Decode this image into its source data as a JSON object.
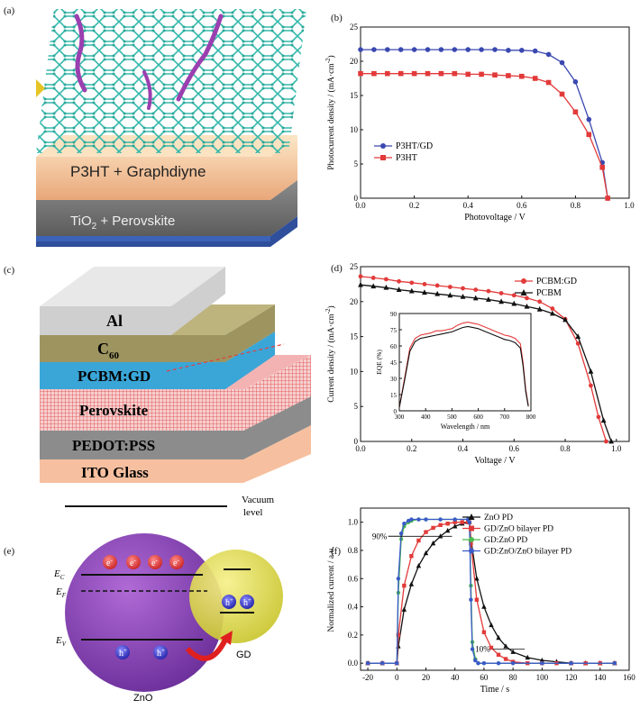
{
  "panels": {
    "a": {
      "label": "(a)",
      "layer_top": "P3HT + Graphdiyne",
      "layer_bottom_main": "TiO",
      "layer_bottom_sub": "2",
      "layer_bottom_rest": " + Perovskite"
    },
    "c": {
      "label": "(c)",
      "layers": [
        "Al",
        "C",
        "PCBM:GD",
        "Perovskite",
        "PEDOT:PSS",
        "ITO Glass"
      ],
      "c60_sub": "60"
    },
    "e": {
      "label": "(e)",
      "vacuum": "Vacuum",
      "level": "level",
      "ec": "E",
      "ec_sub": "C",
      "ef": "E",
      "ef_sub": "F",
      "ev": "E",
      "ev_sub": "V",
      "left_sphere": "ZnO",
      "right_sphere": "GD",
      "electron": "e",
      "hole": "h",
      "charge_neg": "-",
      "charge_pos": "+"
    }
  },
  "chart_data": [
    {
      "id": "b",
      "label": "(b)",
      "type": "line",
      "xlabel": "Photovoltage / V",
      "ylabel": "Photocurrent density / (mA·cm",
      "ylabel_sup": "-2",
      "ylabel_end": ")",
      "xlim": [
        0.0,
        1.0
      ],
      "ylim": [
        0,
        25
      ],
      "xticks": [
        "0.0",
        "0.2",
        "0.4",
        "0.6",
        "0.8",
        "1.0"
      ],
      "yticks": [
        "0",
        "5",
        "10",
        "15",
        "20",
        "25"
      ],
      "legend_position": "bottom-left",
      "series": [
        {
          "name": "P3HT/GD",
          "color": "#3a48b0",
          "marker": "circle",
          "x": [
            0.0,
            0.05,
            0.1,
            0.15,
            0.2,
            0.25,
            0.3,
            0.35,
            0.4,
            0.45,
            0.5,
            0.55,
            0.6,
            0.65,
            0.7,
            0.75,
            0.8,
            0.85,
            0.9,
            0.92
          ],
          "y": [
            21.7,
            21.7,
            21.7,
            21.7,
            21.7,
            21.7,
            21.7,
            21.7,
            21.7,
            21.7,
            21.7,
            21.6,
            21.6,
            21.5,
            21.0,
            19.8,
            17.0,
            11.5,
            5.2,
            0.0
          ]
        },
        {
          "name": "P3HT",
          "color": "#e23a3a",
          "marker": "square",
          "x": [
            0.0,
            0.05,
            0.1,
            0.15,
            0.2,
            0.25,
            0.3,
            0.35,
            0.4,
            0.45,
            0.5,
            0.55,
            0.6,
            0.65,
            0.7,
            0.75,
            0.8,
            0.85,
            0.9,
            0.92
          ],
          "y": [
            18.2,
            18.2,
            18.2,
            18.2,
            18.2,
            18.2,
            18.2,
            18.2,
            18.1,
            18.1,
            18.0,
            17.9,
            17.8,
            17.5,
            16.9,
            15.2,
            12.6,
            9.3,
            4.5,
            0.0
          ]
        }
      ]
    },
    {
      "id": "d",
      "label": "(d)",
      "type": "line",
      "xlabel": "Voltage / V",
      "ylabel": "Current density / (mA·cm",
      "ylabel_sup": "-2",
      "ylabel_end": ")",
      "xlim": [
        0.0,
        1.05
      ],
      "ylim": [
        0,
        25
      ],
      "xticks": [
        "0.0",
        "0.2",
        "0.4",
        "0.6",
        "0.8",
        "1.0"
      ],
      "yticks": [
        "0",
        "5",
        "10",
        "15",
        "20",
        "25"
      ],
      "legend_position": "top-right",
      "series": [
        {
          "name": "PCBM:GD",
          "color": "#e23a3a",
          "marker": "circle",
          "x": [
            0.0,
            0.05,
            0.1,
            0.15,
            0.2,
            0.25,
            0.3,
            0.35,
            0.4,
            0.45,
            0.5,
            0.55,
            0.6,
            0.65,
            0.7,
            0.75,
            0.8,
            0.85,
            0.9,
            0.93,
            0.96
          ],
          "y": [
            23.6,
            23.4,
            23.2,
            22.9,
            22.7,
            22.5,
            22.3,
            22.1,
            21.9,
            21.7,
            21.5,
            21.2,
            20.9,
            20.5,
            20.0,
            19.0,
            17.5,
            14.0,
            8.0,
            3.5,
            0.0
          ]
        },
        {
          "name": "PCBM",
          "color": "#111111",
          "marker": "triangle",
          "x": [
            0.0,
            0.05,
            0.1,
            0.15,
            0.2,
            0.25,
            0.3,
            0.35,
            0.4,
            0.45,
            0.5,
            0.55,
            0.6,
            0.65,
            0.7,
            0.75,
            0.8,
            0.85,
            0.9,
            0.95,
            0.98
          ],
          "y": [
            22.4,
            22.2,
            22.0,
            21.7,
            21.5,
            21.3,
            21.1,
            20.9,
            20.7,
            20.5,
            20.3,
            20.0,
            19.7,
            19.3,
            18.9,
            18.3,
            17.4,
            15.0,
            10.0,
            3.0,
            0.0
          ]
        }
      ],
      "inset": {
        "type": "line",
        "xlabel": "Wavelength / nm",
        "ylabel": "EQE (%)",
        "xlim": [
          300,
          800
        ],
        "ylim": [
          0,
          90
        ],
        "xticks": [
          "300",
          "400",
          "500",
          "600",
          "700",
          "800"
        ],
        "yticks": [
          "0",
          "15",
          "30",
          "45",
          "60",
          "75",
          "90"
        ],
        "series": [
          {
            "name": "PCBM:GD",
            "color": "#e23a3a",
            "x": [
              300,
              320,
              340,
              360,
              380,
              400,
              420,
              440,
              460,
              480,
              500,
              520,
              540,
              560,
              580,
              600,
              620,
              640,
              660,
              680,
              700,
              720,
              740,
              760,
              770,
              780,
              790
            ],
            "y": [
              3,
              30,
              58,
              67,
              70,
              71,
              72,
              74,
              74,
              75,
              76,
              79,
              81,
              82,
              81,
              80,
              78,
              76,
              74,
              72,
              70,
              69,
              67,
              62,
              45,
              20,
              5
            ]
          },
          {
            "name": "PCBM",
            "color": "#111111",
            "x": [
              300,
              320,
              340,
              360,
              380,
              400,
              420,
              440,
              460,
              480,
              500,
              520,
              540,
              560,
              580,
              600,
              620,
              640,
              660,
              680,
              700,
              720,
              740,
              760,
              770,
              780,
              790
            ],
            "y": [
              3,
              28,
              55,
              64,
              67,
              68,
              69,
              70,
              71,
              72,
              73,
              75,
              77,
              78,
              77,
              76,
              74,
              72,
              70,
              68,
              66,
              65,
              63,
              58,
              42,
              18,
              4
            ]
          }
        ]
      }
    },
    {
      "id": "f",
      "label": "(f)",
      "type": "line",
      "xlabel": "Time / s",
      "ylabel": "Normalized current / a.u.",
      "xlim": [
        -25,
        160
      ],
      "ylim": [
        -0.05,
        1.1
      ],
      "xticks": [
        "-20",
        "0",
        "20",
        "40",
        "60",
        "80",
        "100",
        "120",
        "140",
        "160"
      ],
      "yticks": [
        "0.0",
        "0.2",
        "0.4",
        "0.6",
        "0.8",
        "1.0"
      ],
      "legend_position": "top-right",
      "annotations": [
        "90%",
        "10%"
      ],
      "series": [
        {
          "name": "ZnO PD",
          "color": "#111111",
          "marker": "triangle",
          "x": [
            -20,
            -10,
            0,
            1,
            5,
            10,
            15,
            20,
            25,
            30,
            35,
            40,
            45,
            49,
            50,
            51,
            55,
            60,
            65,
            70,
            75,
            80,
            90,
            100,
            110,
            120,
            130,
            140,
            150
          ],
          "y": [
            0,
            0,
            0,
            0.12,
            0.38,
            0.56,
            0.69,
            0.78,
            0.85,
            0.9,
            0.94,
            0.97,
            0.99,
            1.0,
            1.0,
            0.88,
            0.6,
            0.4,
            0.27,
            0.18,
            0.12,
            0.08,
            0.04,
            0.02,
            0.01,
            0.0,
            0.0,
            0.0,
            0.0
          ]
        },
        {
          "name": "GD/ZnO bilayer PD",
          "color": "#e23a3a",
          "marker": "square",
          "x": [
            -20,
            -10,
            0,
            1,
            5,
            10,
            15,
            20,
            25,
            30,
            35,
            40,
            45,
            49,
            50,
            51,
            55,
            60,
            65,
            70,
            75,
            80,
            90,
            100,
            110,
            120,
            130,
            140,
            150
          ],
          "y": [
            0,
            0,
            0,
            0.2,
            0.55,
            0.76,
            0.87,
            0.93,
            0.96,
            0.98,
            0.99,
            1.0,
            1.0,
            1.0,
            1.0,
            0.85,
            0.45,
            0.22,
            0.11,
            0.06,
            0.03,
            0.01,
            0.0,
            0.0,
            0.0,
            0.0,
            0.0,
            0.0,
            0.0
          ]
        },
        {
          "name": "GD:ZnO PD",
          "color": "#4aba4a",
          "marker": "circle",
          "x": [
            -20,
            -10,
            0,
            1,
            3,
            5,
            8,
            10,
            15,
            20,
            30,
            40,
            49,
            50,
            51,
            52,
            54,
            56,
            60,
            70,
            80,
            100,
            120,
            150
          ],
          "y": [
            0,
            0,
            0,
            0.5,
            0.88,
            0.97,
            1.0,
            1.01,
            1.02,
            1.02,
            1.02,
            1.02,
            1.02,
            1.0,
            0.55,
            0.15,
            0.03,
            0.0,
            0.0,
            0.0,
            0.0,
            0.0,
            0.0,
            0.0
          ]
        },
        {
          "name": "GD:ZnO/ZnO bilayer PD",
          "color": "#3a5ac8",
          "marker": "circle",
          "x": [
            -20,
            -10,
            0,
            1,
            3,
            5,
            8,
            10,
            15,
            20,
            30,
            40,
            49,
            50,
            51,
            52,
            54,
            56,
            60,
            70,
            80,
            100,
            120,
            150
          ],
          "y": [
            0,
            0,
            0,
            0.6,
            0.92,
            0.99,
            1.01,
            1.02,
            1.02,
            1.02,
            1.02,
            1.02,
            1.02,
            1.0,
            0.45,
            0.1,
            0.02,
            0.0,
            0.0,
            0.0,
            0.0,
            0.0,
            0.0,
            0.0
          ]
        }
      ]
    }
  ]
}
